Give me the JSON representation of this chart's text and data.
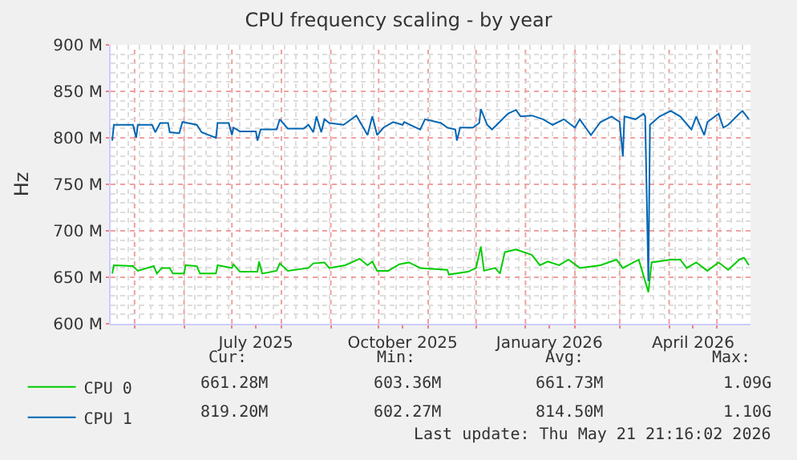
{
  "chart_data": {
    "type": "line",
    "title": "CPU frequency scaling - by year",
    "ylabel": "Hz",
    "xlim": [
      "2025-04-16",
      "2026-05-22"
    ],
    "xticks": [
      {
        "value": "2025-05-01",
        "label": null
      },
      {
        "value": "2025-06-01",
        "label": null
      },
      {
        "value": "2025-07-01",
        "label": null
      },
      {
        "value": "2025-07-16",
        "label": "July 2025"
      },
      {
        "value": "2025-08-01",
        "label": null
      },
      {
        "value": "2025-09-01",
        "label": null
      },
      {
        "value": "2025-10-01",
        "label": null
      },
      {
        "value": "2025-10-16",
        "label": "October 2025"
      },
      {
        "value": "2025-11-01",
        "label": null
      },
      {
        "value": "2025-12-01",
        "label": null
      },
      {
        "value": "2026-01-01",
        "label": null
      },
      {
        "value": "2026-01-16",
        "label": "January 2026"
      },
      {
        "value": "2026-02-01",
        "label": null
      },
      {
        "value": "2026-03-01",
        "label": null
      },
      {
        "value": "2026-04-01",
        "label": null
      },
      {
        "value": "2026-04-16",
        "label": "April 2026"
      },
      {
        "value": "2026-05-01",
        "label": null
      }
    ],
    "ylim": [
      600,
      900
    ],
    "yticks": [
      {
        "value": 600,
        "label": "600 M"
      },
      {
        "value": 650,
        "label": "650 M"
      },
      {
        "value": 700,
        "label": "700 M"
      },
      {
        "value": 750,
        "label": "750 M"
      },
      {
        "value": 800,
        "label": "800 M"
      },
      {
        "value": 850,
        "label": "850 M"
      },
      {
        "value": 900,
        "label": "900 M"
      }
    ],
    "grid": true,
    "legend": "bottom left",
    "marker": "none",
    "line_style": "solid",
    "series": [
      {
        "name": "CPU 0",
        "color": "#00cc00",
        "x": [
          "2025-04-17",
          "2025-04-18",
          "2025-04-30",
          "2025-05-03",
          "2025-05-13",
          "2025-05-15",
          "2025-05-18",
          "2025-05-23",
          "2025-05-25",
          "2025-06-01",
          "2025-06-02",
          "2025-06-09",
          "2025-06-11",
          "2025-06-21",
          "2025-06-22",
          "2025-07-01",
          "2025-07-02",
          "2025-07-06",
          "2025-07-17",
          "2025-07-18",
          "2025-07-20",
          "2025-07-29",
          "2025-07-31",
          "2025-08-05",
          "2025-08-18",
          "2025-08-21",
          "2025-08-28",
          "2025-08-31",
          "2025-09-10",
          "2025-09-19",
          "2025-09-24",
          "2025-09-27",
          "2025-09-30",
          "2025-10-07",
          "2025-10-14",
          "2025-10-20",
          "2025-10-27",
          "2025-11-13",
          "2025-11-14",
          "2025-11-26",
          "2025-12-01",
          "2025-12-04",
          "2025-12-06",
          "2025-12-13",
          "2025-12-16",
          "2025-12-19",
          "2025-12-26",
          "2026-01-05",
          "2026-01-10",
          "2026-01-15",
          "2026-01-22",
          "2026-01-28",
          "2026-02-04",
          "2026-02-17",
          "2026-02-27",
          "2026-03-03",
          "2026-03-13",
          "2026-03-19",
          "2026-03-21",
          "2026-04-02",
          "2026-04-08",
          "2026-04-12",
          "2026-04-18",
          "2026-04-25",
          "2026-05-02",
          "2026-05-08",
          "2026-05-15",
          "2026-05-18",
          "2026-05-21"
        ],
        "values": [
          654,
          663,
          662,
          657,
          662,
          654,
          660,
          660,
          654,
          654,
          663,
          662,
          654,
          654,
          663,
          660,
          664,
          656,
          656,
          667,
          654,
          657,
          665,
          657,
          660,
          665,
          666,
          660,
          663,
          670,
          663,
          667,
          657,
          657,
          664,
          666,
          660,
          658,
          653,
          656,
          660,
          683,
          657,
          660,
          654,
          677,
          680,
          674,
          663,
          667,
          663,
          669,
          660,
          663,
          669,
          660,
          669,
          634,
          666,
          669,
          669,
          660,
          666,
          657,
          666,
          658,
          669,
          671,
          663
        ]
      },
      {
        "name": "CPU 1",
        "color": "#0066b3",
        "x": [
          "2025-04-17",
          "2025-04-18",
          "2025-04-30",
          "2025-05-02",
          "2025-05-03",
          "2025-05-12",
          "2025-05-14",
          "2025-05-17",
          "2025-05-22",
          "2025-05-23",
          "2025-05-29",
          "2025-05-31",
          "2025-06-09",
          "2025-06-12",
          "2025-06-21",
          "2025-06-22",
          "2025-06-29",
          "2025-07-01",
          "2025-07-02",
          "2025-07-06",
          "2025-07-16",
          "2025-07-17",
          "2025-07-19",
          "2025-07-29",
          "2025-07-31",
          "2025-08-05",
          "2025-08-15",
          "2025-08-18",
          "2025-08-21",
          "2025-08-23",
          "2025-08-26",
          "2025-08-28",
          "2025-08-31",
          "2025-09-09",
          "2025-09-17",
          "2025-09-24",
          "2025-09-27",
          "2025-09-30",
          "2025-10-04",
          "2025-10-10",
          "2025-10-16",
          "2025-10-17",
          "2025-10-27",
          "2025-10-30",
          "2025-11-09",
          "2025-11-13",
          "2025-11-18",
          "2025-11-19",
          "2025-11-21",
          "2025-11-29",
          "2025-12-03",
          "2025-12-04",
          "2025-12-08",
          "2025-12-11",
          "2025-12-14",
          "2025-12-21",
          "2025-12-26",
          "2025-12-29",
          "2026-01-05",
          "2026-01-12",
          "2026-01-18",
          "2026-01-25",
          "2026-02-01",
          "2026-02-04",
          "2026-02-11",
          "2026-02-17",
          "2026-02-24",
          "2026-03-01",
          "2026-03-03",
          "2026-03-04",
          "2026-03-11",
          "2026-03-16",
          "2026-03-17",
          "2026-03-19",
          "2026-03-20",
          "2026-03-26",
          "2026-04-02",
          "2026-04-08",
          "2026-04-15",
          "2026-04-18",
          "2026-04-23",
          "2026-04-25",
          "2026-05-02",
          "2026-05-05",
          "2026-05-08",
          "2026-05-15",
          "2026-05-17",
          "2026-05-21"
        ],
        "values": [
          797,
          814,
          814,
          800,
          814,
          814,
          806,
          816,
          816,
          806,
          805,
          817,
          814,
          806,
          800,
          816,
          816,
          803,
          811,
          807,
          807,
          797,
          809,
          809,
          820,
          810,
          810,
          814,
          806,
          823,
          806,
          820,
          816,
          814,
          824,
          803,
          823,
          803,
          811,
          817,
          814,
          817,
          809,
          820,
          816,
          811,
          809,
          797,
          811,
          811,
          816,
          831,
          814,
          809,
          814,
          826,
          830,
          823,
          824,
          820,
          814,
          820,
          811,
          820,
          803,
          817,
          823,
          817,
          780,
          823,
          820,
          826,
          823,
          646,
          814,
          823,
          829,
          823,
          809,
          823,
          803,
          817,
          826,
          811,
          814,
          826,
          829,
          820
        ]
      }
    ],
    "annotations": [
      "Cur:",
      "Min:",
      "Avg:",
      "Max:",
      "661.28M",
      "603.36M",
      "661.73M",
      "1.09G",
      "819.20M",
      "602.27M",
      "814.50M",
      "1.10G",
      "Last update: Thu May 21 21:16:02 2026"
    ]
  }
}
